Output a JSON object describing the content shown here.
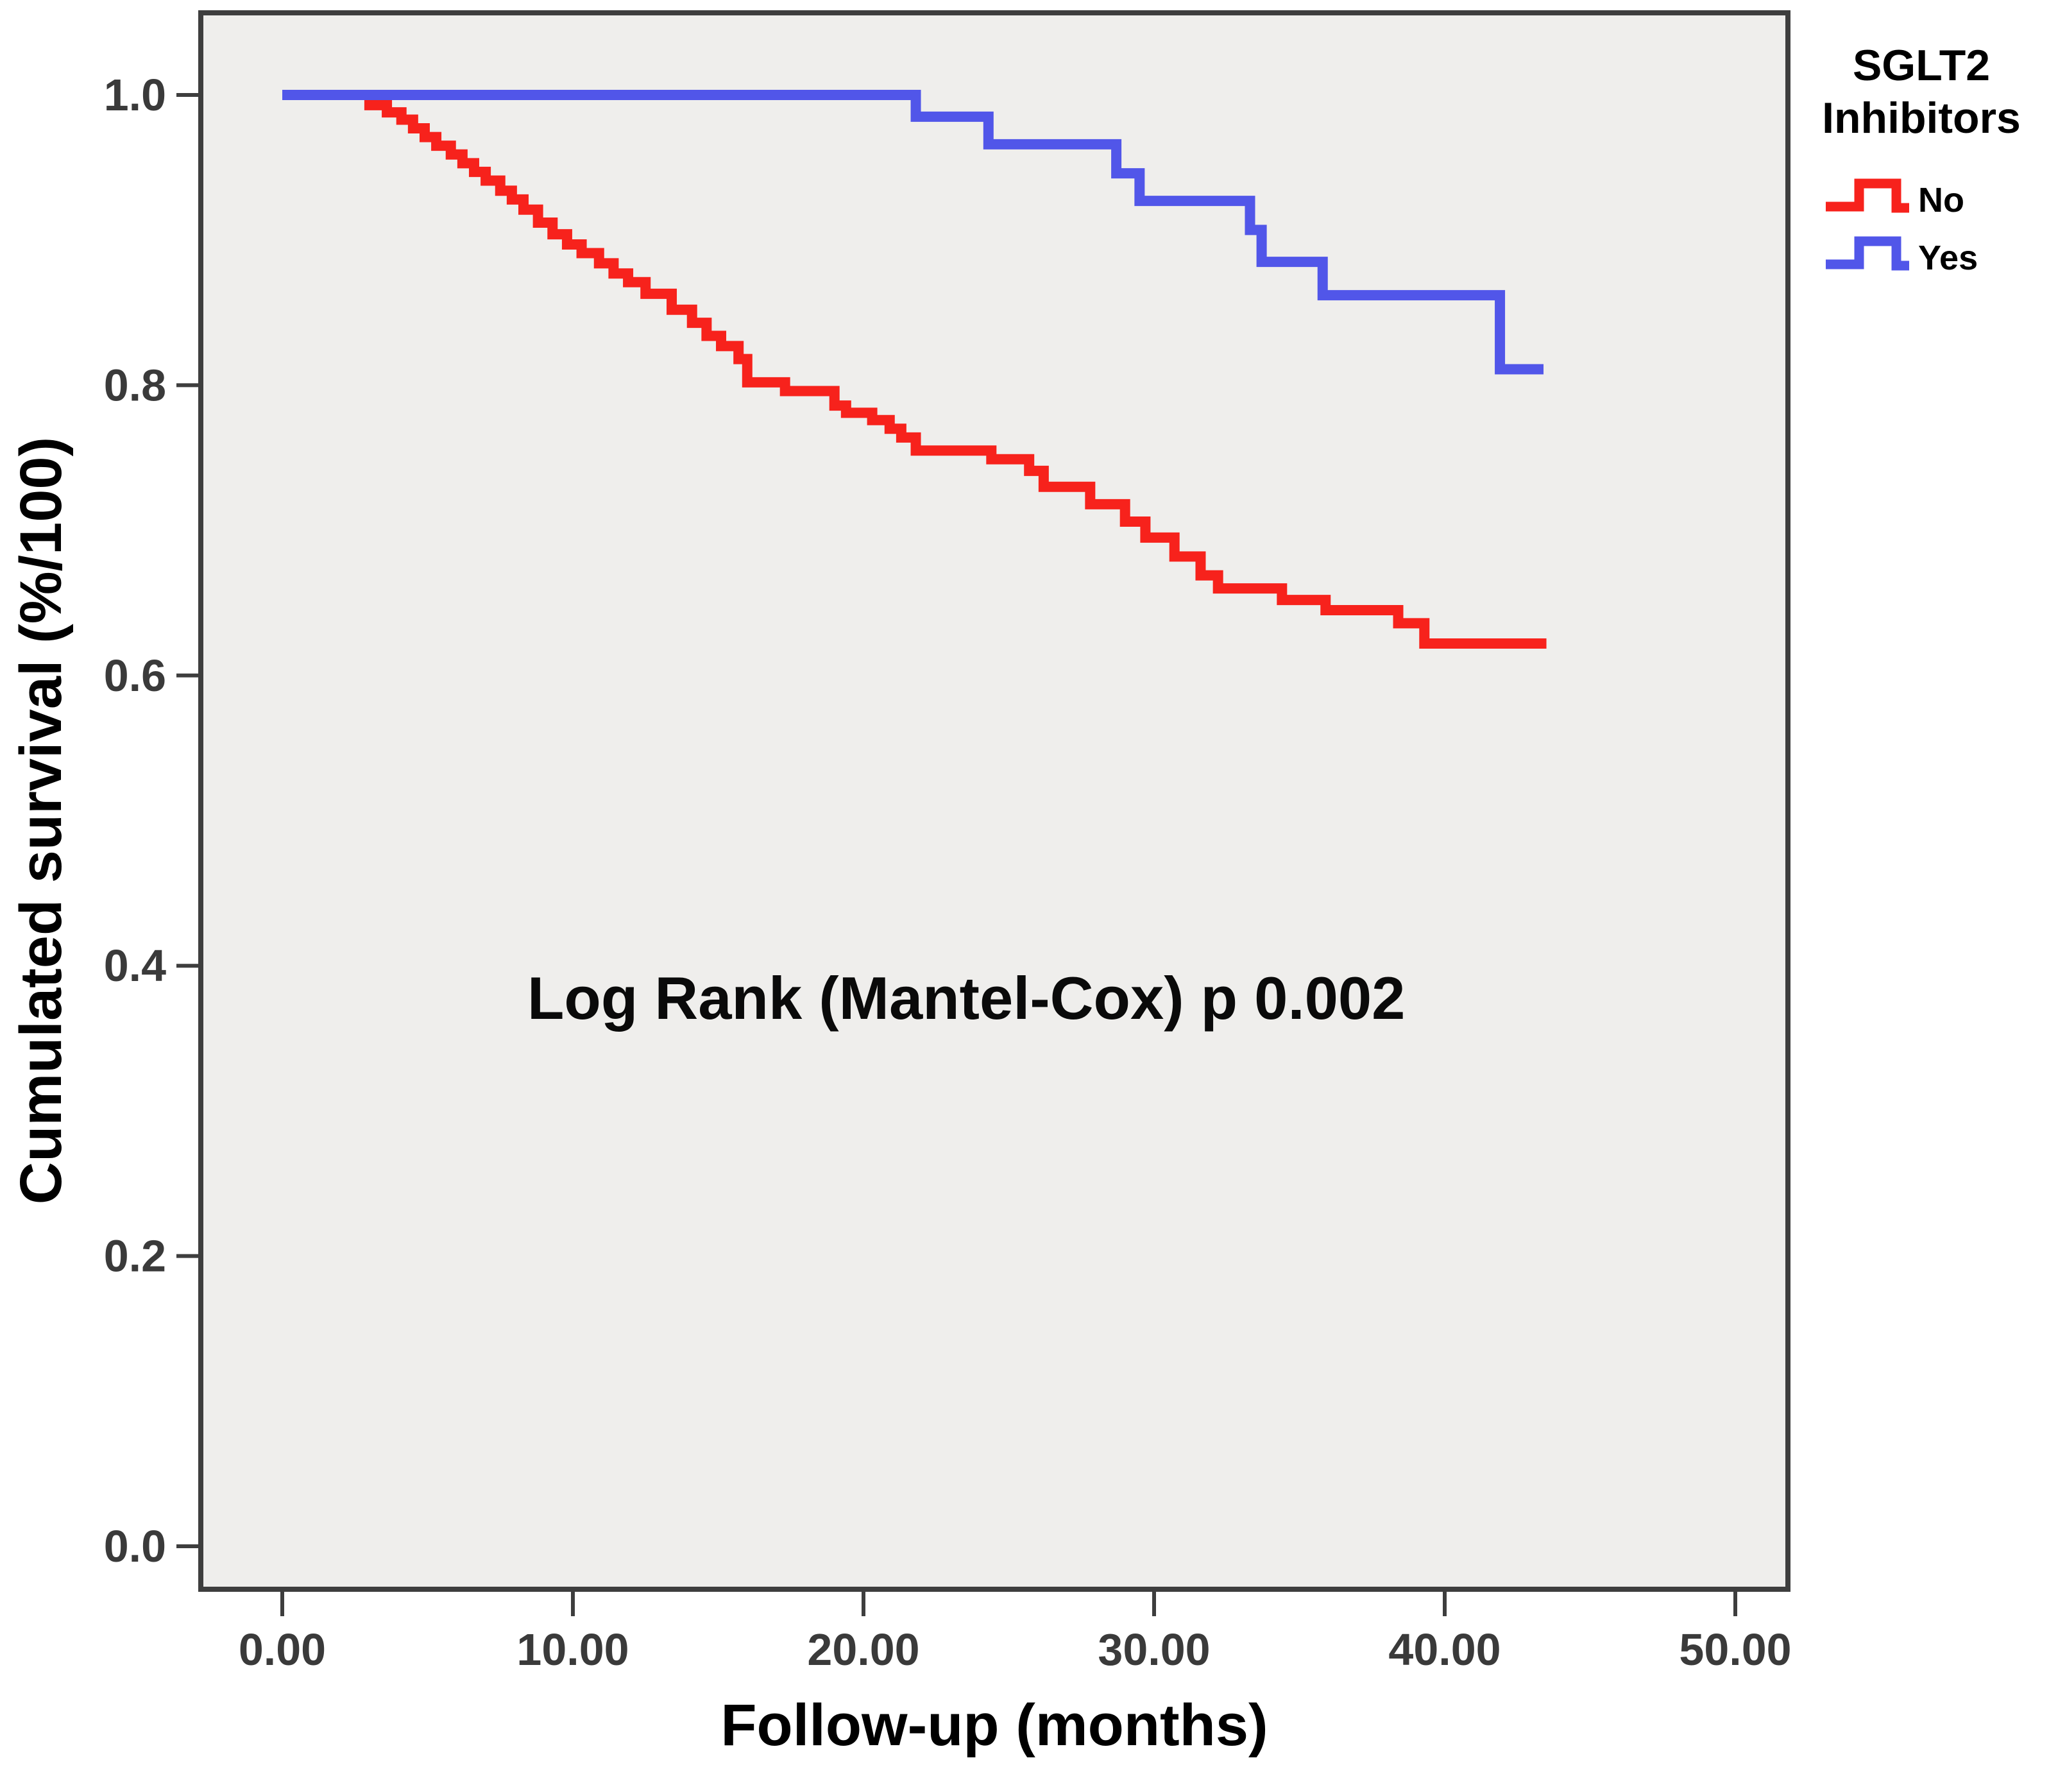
{
  "page": {
    "background": "#ffffff"
  },
  "chart_data": {
    "type": "line",
    "subtype": "kaplan_meier_step",
    "title": "",
    "xlabel": "Follow-up (months)",
    "ylabel": "Cumulated survival (%/100)",
    "annotation": "Log Rank (Mantel-Cox) p 0.002",
    "x_ticks": [
      0,
      10,
      20,
      30,
      40,
      50
    ],
    "x_tick_labels": [
      "0.00",
      "10.00",
      "20.00",
      "30.00",
      "40.00",
      "50.00"
    ],
    "y_ticks": [
      1.0,
      0.8,
      0.6,
      0.4,
      0.2,
      0.0
    ],
    "y_tick_labels": [
      "1.0",
      "0.8",
      "0.6",
      "0.4",
      "0.2",
      "0.0"
    ],
    "xlim": [
      -2.8,
      51.8
    ],
    "ylim": [
      -0.03,
      1.057
    ],
    "grid": false,
    "plot_background": "#efeeec",
    "frame_color": "#3e3e3e",
    "legend": {
      "position": "outside-top-right",
      "title_lines": [
        "SGLT2",
        "Inhibitors"
      ],
      "entries": [
        {
          "label": "No",
          "color": "#f7221c"
        },
        {
          "label": "Yes",
          "color": "#5156e9"
        }
      ]
    },
    "series": [
      {
        "name": "No",
        "color": "#f7221c",
        "end_month": 43.5,
        "steps": [
          [
            0,
            1.0
          ],
          [
            3.0,
            0.993
          ],
          [
            3.6,
            0.988
          ],
          [
            4.1,
            0.983
          ],
          [
            4.5,
            0.977
          ],
          [
            4.9,
            0.971
          ],
          [
            5.3,
            0.965
          ],
          [
            5.8,
            0.959
          ],
          [
            6.2,
            0.953
          ],
          [
            6.6,
            0.947
          ],
          [
            7.0,
            0.941
          ],
          [
            7.5,
            0.934
          ],
          [
            7.9,
            0.928
          ],
          [
            8.3,
            0.921
          ],
          [
            8.8,
            0.912
          ],
          [
            9.3,
            0.904
          ],
          [
            9.8,
            0.897
          ],
          [
            10.3,
            0.891
          ],
          [
            10.9,
            0.884
          ],
          [
            11.4,
            0.877
          ],
          [
            11.9,
            0.871
          ],
          [
            12.5,
            0.863
          ],
          [
            13.4,
            0.852
          ],
          [
            14.1,
            0.843
          ],
          [
            14.6,
            0.834
          ],
          [
            15.1,
            0.827
          ],
          [
            15.7,
            0.818
          ],
          [
            16.0,
            0.802
          ],
          [
            17.3,
            0.796
          ],
          [
            19.0,
            0.786
          ],
          [
            19.4,
            0.781
          ],
          [
            20.3,
            0.776
          ],
          [
            20.9,
            0.77
          ],
          [
            21.3,
            0.764
          ],
          [
            21.8,
            0.755
          ],
          [
            24.4,
            0.749
          ],
          [
            25.7,
            0.741
          ],
          [
            26.2,
            0.73
          ],
          [
            27.8,
            0.718
          ],
          [
            29.0,
            0.706
          ],
          [
            29.7,
            0.695
          ],
          [
            30.7,
            0.682
          ],
          [
            31.6,
            0.669
          ],
          [
            32.2,
            0.66
          ],
          [
            34.4,
            0.652
          ],
          [
            35.9,
            0.645
          ],
          [
            38.4,
            0.636
          ],
          [
            39.3,
            0.622
          ]
        ]
      },
      {
        "name": "Yes",
        "color": "#5156e9",
        "end_month": 43.4,
        "steps": [
          [
            0,
            1.0
          ],
          [
            21.8,
            0.985
          ],
          [
            24.3,
            0.966
          ],
          [
            28.7,
            0.946
          ],
          [
            29.5,
            0.927
          ],
          [
            33.3,
            0.907
          ],
          [
            33.7,
            0.885
          ],
          [
            35.8,
            0.862
          ],
          [
            41.9,
            0.811
          ]
        ]
      }
    ]
  }
}
